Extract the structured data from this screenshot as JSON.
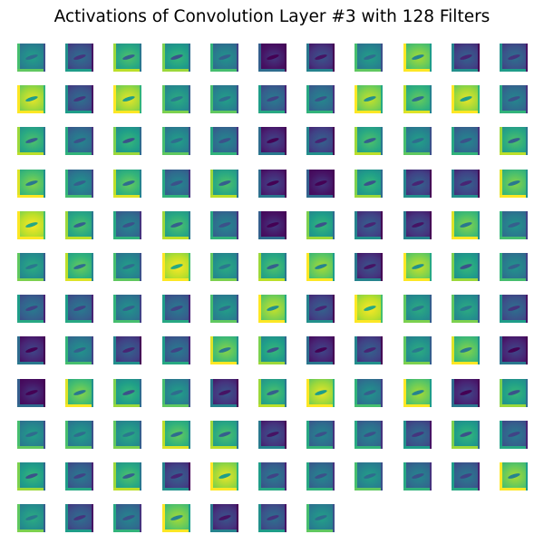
{
  "figure": {
    "title": "Activations of Convolution Layer #3 with 128 Filters"
  },
  "grid": {
    "rows": 12,
    "cols": 11,
    "filter_count": 128,
    "colormap": "viridis",
    "tone_scale_note": "tone 0 = dark purple (#440154), 1 = yellow (#fde725)",
    "tiles_tone": [
      [
        0.45,
        0.25,
        0.6,
        0.55,
        0.4,
        0.05,
        0.15,
        0.45,
        0.75,
        0.2,
        0.25
      ],
      [
        0.85,
        0.25,
        0.85,
        0.5,
        0.45,
        0.3,
        0.35,
        0.8,
        0.65,
        0.85,
        0.35
      ],
      [
        0.6,
        0.35,
        0.55,
        0.45,
        0.35,
        0.1,
        0.2,
        0.6,
        0.45,
        0.35,
        0.6
      ],
      [
        0.7,
        0.4,
        0.65,
        0.35,
        0.6,
        0.1,
        0.05,
        0.55,
        0.2,
        0.2,
        0.7
      ],
      [
        0.9,
        0.6,
        0.35,
        0.6,
        0.35,
        0.05,
        0.55,
        0.2,
        0.15,
        0.7,
        0.4
      ],
      [
        0.5,
        0.65,
        0.45,
        0.9,
        0.5,
        0.6,
        0.75,
        0.15,
        0.8,
        0.55,
        0.4
      ],
      [
        0.3,
        0.3,
        0.4,
        0.3,
        0.45,
        0.8,
        0.2,
        0.9,
        0.5,
        0.5,
        0.25
      ],
      [
        0.1,
        0.4,
        0.2,
        0.3,
        0.7,
        0.55,
        0.1,
        0.2,
        0.5,
        0.7,
        0.1
      ],
      [
        0.05,
        0.7,
        0.55,
        0.45,
        0.15,
        0.6,
        0.85,
        0.4,
        0.75,
        0.1,
        0.55
      ],
      [
        0.45,
        0.45,
        0.5,
        0.65,
        0.6,
        0.15,
        0.35,
        0.35,
        0.25,
        0.55,
        0.3
      ],
      [
        0.55,
        0.3,
        0.6,
        0.2,
        0.85,
        0.3,
        0.35,
        0.45,
        0.35,
        0.3,
        0.75
      ],
      [
        0.5,
        0.25,
        0.35,
        0.75,
        0.15,
        0.25,
        0.45
      ]
    ]
  }
}
